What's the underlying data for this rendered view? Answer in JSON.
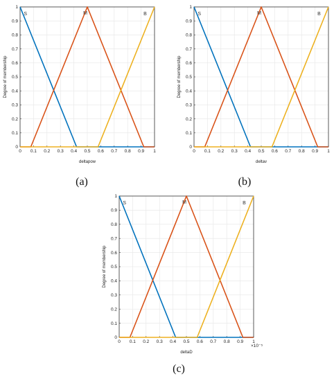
{
  "chart_data": [
    {
      "type": "line",
      "caption": "(a)",
      "xlabel": "deltapow",
      "ylabel": "Degree of membership",
      "xlim": [
        0,
        1
      ],
      "ylim": [
        0,
        1
      ],
      "grid": true,
      "x_ticks": [
        "0",
        "0.1",
        "0.2",
        "0.3",
        "0.4",
        "0.5",
        "0.6",
        "0.7",
        "0.8",
        "0.9",
        "1"
      ],
      "y_ticks": [
        "0",
        "0.1",
        "0.2",
        "0.3",
        "0.4",
        "0.5",
        "0.6",
        "0.7",
        "0.8",
        "0.9",
        "1"
      ],
      "series": [
        {
          "name": "S",
          "color": "#0072BD",
          "x": [
            0,
            0.42,
            1
          ],
          "y": [
            1,
            0,
            0
          ]
        },
        {
          "name": "M",
          "color": "#D95319",
          "x": [
            0,
            0.08,
            0.5,
            0.92,
            1
          ],
          "y": [
            0,
            0,
            1,
            0,
            0
          ]
        },
        {
          "name": "B",
          "color": "#EDB120",
          "x": [
            0,
            0.58,
            1
          ],
          "y": [
            0,
            0,
            1
          ]
        }
      ]
    },
    {
      "type": "line",
      "caption": "(b)",
      "xlabel": "deltav",
      "ylabel": "Degree of membership",
      "xlim": [
        0,
        1
      ],
      "ylim": [
        0,
        1
      ],
      "grid": true,
      "x_ticks": [
        "0",
        "0.1",
        "0.2",
        "0.3",
        "0.4",
        "0.5",
        "0.6",
        "0.7",
        "0.8",
        "0.9",
        "1"
      ],
      "y_ticks": [
        "0",
        "0.1",
        "0.2",
        "0.3",
        "0.4",
        "0.5",
        "0.6",
        "0.7",
        "0.8",
        "0.9",
        "1"
      ],
      "series": [
        {
          "name": "S",
          "color": "#0072BD",
          "x": [
            0,
            0.42,
            1
          ],
          "y": [
            1,
            0,
            0
          ]
        },
        {
          "name": "M",
          "color": "#D95319",
          "x": [
            0,
            0.08,
            0.5,
            0.92,
            1
          ],
          "y": [
            0,
            0,
            1,
            0,
            0
          ]
        },
        {
          "name": "B",
          "color": "#EDB120",
          "x": [
            0,
            0.58,
            1
          ],
          "y": [
            0,
            0,
            1
          ]
        }
      ]
    },
    {
      "type": "line",
      "caption": "(c)",
      "xlabel": "deltaD",
      "ylabel": "Degree of membership",
      "xlim": [
        0,
        1
      ],
      "ylim": [
        0,
        1
      ],
      "x_multiplier": "×10⁻⁵",
      "grid": true,
      "x_ticks": [
        "0",
        "0.1",
        "0.2",
        "0.3",
        "0.4",
        "0.5",
        "0.6",
        "0.7",
        "0.8",
        "0.9",
        "1"
      ],
      "y_ticks": [
        "0",
        "0.1",
        "0.2",
        "0.3",
        "0.4",
        "0.5",
        "0.6",
        "0.7",
        "0.8",
        "0.9",
        "1"
      ],
      "series": [
        {
          "name": "S",
          "color": "#0072BD",
          "x": [
            0,
            0.42,
            1
          ],
          "y": [
            1,
            0,
            0
          ]
        },
        {
          "name": "M",
          "color": "#D95319",
          "x": [
            0,
            0.08,
            0.5,
            0.92,
            1
          ],
          "y": [
            0,
            0,
            1,
            0,
            0
          ]
        },
        {
          "name": "B",
          "color": "#EDB120",
          "x": [
            0,
            0.58,
            1
          ],
          "y": [
            0,
            0,
            1
          ]
        }
      ]
    }
  ]
}
